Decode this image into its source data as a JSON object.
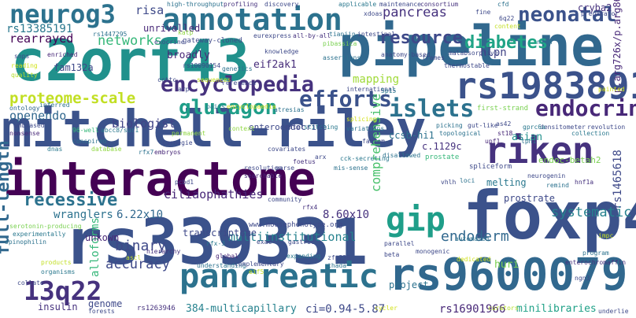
{
  "word_cloud": {
    "words": [
      {
        "text": "mitchell-riley",
        "color": "#3b528b"
      },
      {
        "text": "interactome",
        "color": "#440154"
      },
      {
        "text": "c2orf43",
        "color": "#21918c"
      },
      {
        "text": "pipeline",
        "color": "#31688e"
      },
      {
        "text": "foxp4",
        "color": "#3b528b"
      },
      {
        "text": "rs339331",
        "color": "#3b528b"
      },
      {
        "text": "rs9600079",
        "color": "#31688e"
      },
      {
        "text": "rs1983891",
        "color": "#3b528b"
      },
      {
        "text": "annotation",
        "color": "#2c728e"
      },
      {
        "text": "riken",
        "color": "#46327e"
      },
      {
        "text": "pancreatic",
        "color": "#2c728e"
      },
      {
        "text": "neurog3",
        "color": "#2c728e"
      },
      {
        "text": "gip",
        "color": "#1f9e89"
      },
      {
        "text": "encyclopedia",
        "color": "#46327e"
      },
      {
        "text": "endocrine",
        "color": "#482878"
      },
      {
        "text": "13q22",
        "color": "#46327e"
      },
      {
        "text": "glucagon",
        "color": "#1f9e89"
      },
      {
        "text": "resource",
        "color": "#3e4989"
      },
      {
        "text": "efforts",
        "color": "#3b528b"
      },
      {
        "text": "islets",
        "color": "#2c728e"
      },
      {
        "text": "neonatal",
        "color": "#3b528b"
      },
      {
        "text": "diabetes",
        "color": "#20a486"
      },
      {
        "text": "recessive",
        "color": "#2c728e"
      },
      {
        "text": "proteome-scale",
        "color": "#c2df23"
      },
      {
        "text": "full-length",
        "color": "#31688e"
      },
      {
        "text": "networks",
        "color": "#35b779"
      },
      {
        "text": "pancreas",
        "color": "#46327e"
      },
      {
        "text": "binary",
        "color": "#3e4989"
      },
      {
        "text": "accuracy",
        "color": "#3e4989"
      },
      {
        "text": "systematic",
        "color": "#26828e"
      },
      {
        "text": "endoderm",
        "color": "#31688e"
      },
      {
        "text": "mapping",
        "color": "#a0da39"
      },
      {
        "text": "rs13385191",
        "color": "#2a788e"
      },
      {
        "text": "rearrayed",
        "color": "#440154"
      },
      {
        "text": "openendo",
        "color": "#31688e"
      },
      {
        "text": "biologist",
        "color": "#414487"
      },
      {
        "text": "comprehensive",
        "color": "#4ac16d"
      },
      {
        "text": "multiinstitutional",
        "color": "#26828e"
      },
      {
        "text": "ciliaophathies",
        "color": "#482878"
      },
      {
        "text": "wranglers",
        "color": "#2c728e"
      },
      {
        "text": "6.22x10",
        "color": "#31688e"
      },
      {
        "text": "8.60x10",
        "color": "#46327e"
      },
      {
        "text": "rs1465618",
        "color": "#3e4989"
      },
      {
        "text": "rs16901966",
        "color": "#482878"
      },
      {
        "text": "ci=0.94-5.87",
        "color": "#3e4989"
      },
      {
        "text": "384-multicapillary",
        "color": "#26828e"
      },
      {
        "text": "minilibraries",
        "color": "#1fa187"
      },
      {
        "text": "hlpn",
        "color": "#414487"
      },
      {
        "text": "huri",
        "color": "#7ad151"
      },
      {
        "text": "alloforms",
        "color": "#35b779"
      },
      {
        "text": "prostrate",
        "color": "#3e4989"
      },
      {
        "text": "transcriptome",
        "color": "#3e4989"
      },
      {
        "text": "endoc-betah2",
        "color": "#7ad151"
      },
      {
        "text": "eif2ak1",
        "color": "#472d7b"
      },
      {
        "text": "ccsb-hi1",
        "color": "#2c728e"
      },
      {
        "text": "c.1129c",
        "color": "#46327e"
      },
      {
        "text": "fam132a",
        "color": "#3e4989"
      },
      {
        "text": "risa",
        "color": "#3e4989"
      },
      {
        "text": "unrivalled",
        "color": "#482878"
      },
      {
        "text": "broadly",
        "color": "#482878"
      },
      {
        "text": "melting",
        "color": "#2a788e"
      },
      {
        "text": "asian",
        "color": "#21918c"
      },
      {
        "text": "insulin",
        "color": "#46327e"
      },
      {
        "text": "genome",
        "color": "#3e4989"
      },
      {
        "text": "project",
        "color": "#2c728e"
      },
      {
        "text": "cryba2",
        "color": "#46327e"
      },
      {
        "text": "p.arg726x/p.arg868x",
        "color": "#482878"
      },
      {
        "text": "rs1263946",
        "color": "#46327e"
      },
      {
        "text": "gateway-cloned",
        "color": "#3e4989"
      },
      {
        "text": "enteroendocrine",
        "color": "#3e4989"
      },
      {
        "text": "unkown",
        "color": "#482878"
      },
      {
        "text": "www.mousephenotype.org",
        "color": "#3e4989"
      },
      {
        "text": "high-throughput",
        "color": "#2c728e"
      },
      {
        "text": "profiling",
        "color": "#46327e"
      },
      {
        "text": "discovery",
        "color": "#3e4989"
      },
      {
        "text": "applicable",
        "color": "#2a788e"
      },
      {
        "text": "maintenance",
        "color": "#3e4989"
      },
      {
        "text": "consortium",
        "color": "#46327e"
      },
      {
        "text": "knowledge",
        "color": "#3e4989"
      },
      {
        "text": "reference",
        "color": "#3e4989"
      },
      {
        "text": "ontology",
        "color": "#31688e"
      },
      {
        "text": "inferred",
        "color": "#2c728e"
      },
      {
        "text": "enriched",
        "color": "#482878"
      },
      {
        "text": "unbiased",
        "color": "#3e4989"
      },
      {
        "text": "nonsense",
        "color": "#482878"
      },
      {
        "text": "abcc8/sur1",
        "color": "#2a788e"
      },
      {
        "text": "96-well",
        "color": "#35b779"
      },
      {
        "text": "carnegie",
        "color": "#3e4989"
      },
      {
        "text": "embryos",
        "color": "#482878"
      },
      {
        "text": "patel",
        "color": "#3e4989"
      },
      {
        "text": "context",
        "color": "#90d743"
      },
      {
        "text": "atresias",
        "color": "#2c728e"
      },
      {
        "text": "splicing",
        "color": "#d2e21b"
      },
      {
        "text": "first-strand",
        "color": "#7ad151"
      },
      {
        "text": "picking",
        "color": "#2c728e"
      },
      {
        "text": "gut-like",
        "color": "#3e4989"
      },
      {
        "text": "densitometer",
        "color": "#3e4989"
      },
      {
        "text": "revolution",
        "color": "#3e4989"
      },
      {
        "text": "gprc6a",
        "color": "#2a788e"
      },
      {
        "text": "as42",
        "color": "#3e4989"
      },
      {
        "text": "topological",
        "color": "#2c728e"
      },
      {
        "text": "st18",
        "color": "#482878"
      },
      {
        "text": "upf1",
        "color": "#482878"
      },
      {
        "text": "tph1",
        "color": "#2c728e"
      },
      {
        "text": "collection",
        "color": "#2a788e"
      },
      {
        "text": "variations",
        "color": "#2c728e"
      },
      {
        "text": "fantom",
        "color": "#3e4989"
      },
      {
        "text": "stitching",
        "color": "#2a788e"
      },
      {
        "text": "covariates",
        "color": "#3e4989"
      },
      {
        "text": "arx",
        "color": "#3e4989"
      },
      {
        "text": "cck-secreting",
        "color": "#2a788e"
      },
      {
        "text": "disallowed",
        "color": "#2c728e"
      },
      {
        "text": "prostate",
        "color": "#35b779"
      },
      {
        "text": "foetus",
        "color": "#46327e"
      },
      {
        "text": "mis-sense",
        "color": "#2c728e"
      },
      {
        "text": "parse",
        "color": "#3e4989"
      },
      {
        "text": "searchable",
        "color": "#482878"
      },
      {
        "text": "resolution",
        "color": "#3e4989"
      },
      {
        "text": "spliceform",
        "color": "#3e4989"
      },
      {
        "text": "neurogenin",
        "color": "#3e4989"
      },
      {
        "text": "hnf1a",
        "color": "#46327e"
      },
      {
        "text": "remind",
        "color": "#2c728e"
      },
      {
        "text": "vhlh",
        "color": "#3e4989"
      },
      {
        "text": "loci",
        "color": "#2c728e"
      },
      {
        "text": "pcbd1",
        "color": "#3e4989"
      },
      {
        "text": "community",
        "color": "#3e4989"
      },
      {
        "text": "rfx4",
        "color": "#46327e"
      },
      {
        "text": "rfx-3",
        "color": "#2a788e"
      },
      {
        "text": "exac",
        "color": "#3e4989"
      },
      {
        "text": "gastric",
        "color": "#3e4989"
      },
      {
        "text": "hierarchy",
        "color": "#46327e"
      },
      {
        "text": "understanding",
        "color": "#2c728e"
      },
      {
        "text": "global",
        "color": "#482878"
      },
      {
        "text": "complementary",
        "color": "#3e4989"
      },
      {
        "text": "expanding",
        "color": "#2a788e"
      },
      {
        "text": "zfp238",
        "color": "#3e4989"
      },
      {
        "text": "thada",
        "color": "#2c728e"
      },
      {
        "text": "monogenic",
        "color": "#3e4989"
      },
      {
        "text": "dedicated",
        "color": "#d2e21b"
      },
      {
        "text": "beta",
        "color": "#3e4989"
      },
      {
        "text": "automated",
        "color": "#2c728e"
      },
      {
        "text": "parallel",
        "color": "#3e4989"
      },
      {
        "text": "ngn3",
        "color": "#3e4989"
      },
      {
        "text": "enterochromaffin",
        "color": "#46327e"
      },
      {
        "text": "program",
        "color": "#2c728e"
      },
      {
        "text": "collate",
        "color": "#3e4989"
      },
      {
        "text": "products",
        "color": "#c2df23"
      },
      {
        "text": "organisms",
        "color": "#2a788e"
      },
      {
        "text": "forests",
        "color": "#3e4989"
      },
      {
        "text": "cycler",
        "color": "#d2e21b"
      },
      {
        "text": "curators",
        "color": "#b5de2b"
      },
      {
        "text": "underlie",
        "color": "#3e4989"
      },
      {
        "text": "spinophilin",
        "color": "#2c728e"
      },
      {
        "text": "experimentally",
        "color": "#2a788e"
      },
      {
        "text": "serotonin-producing",
        "color": "#7ad151"
      },
      {
        "text": "snps",
        "color": "#3e4989"
      },
      {
        "text": "reading",
        "color": "#d2e21b"
      },
      {
        "text": "quality",
        "color": "#b5de2b"
      },
      {
        "text": "dnas",
        "color": "#2a788e"
      },
      {
        "text": "database",
        "color": "#90d743"
      },
      {
        "text": "conspired",
        "color": "#2c728e"
      },
      {
        "text": "rs1447295",
        "color": "#2c728e"
      },
      {
        "text": "rs10090154",
        "color": "#3e4989"
      },
      {
        "text": "katp",
        "color": "#90d743"
      },
      {
        "text": "arp",
        "color": "#3e4989"
      },
      {
        "text": "pairs",
        "color": "#2a788e"
      },
      {
        "text": "encyclopaedia",
        "color": "#d2e21b"
      },
      {
        "text": "permanent",
        "color": "#90d743"
      },
      {
        "text": "sequences",
        "color": "#c2df23"
      },
      {
        "text": "genetics",
        "color": "#2c728e"
      },
      {
        "text": "exocrine",
        "color": "#3e4989"
      },
      {
        "text": "eurexpress",
        "color": "#3e4989"
      },
      {
        "text": "all-by-all",
        "color": "#46327e"
      },
      {
        "text": "pibassica",
        "color": "#7ad151"
      },
      {
        "text": "tianjin",
        "color": "#2c728e"
      },
      {
        "text": "intestinal",
        "color": "#3e4989"
      },
      {
        "text": "xdoas",
        "color": "#3e4989"
      },
      {
        "text": "fine",
        "color": "#3e4989"
      },
      {
        "text": "cfd",
        "color": "#2c728e"
      },
      {
        "text": "6q22",
        "color": "#3e4989"
      },
      {
        "text": "preparator",
        "color": "#3e4989"
      },
      {
        "text": "content",
        "color": "#c2df23"
      },
      {
        "text": "nf-m",
        "color": "#2c728e"
      },
      {
        "text": "malabsorptive",
        "color": "#3e4989"
      },
      {
        "text": "thermostable",
        "color": "#3e4989"
      },
      {
        "text": "frames",
        "color": "#3e4989"
      },
      {
        "text": "anatomy-based",
        "color": "#3e4989"
      },
      {
        "text": "assertions",
        "color": "#2c728e"
      },
      {
        "text": "international",
        "color": "#3e4989"
      },
      {
        "text": "5p15",
        "color": "#2a788e"
      },
      {
        "text": "painted",
        "color": "#d2e21b"
      },
      {
        "text": "impc",
        "color": "#c2df23"
      },
      {
        "text": "ccttc",
        "color": "#3e4989"
      },
      {
        "text": "eif5",
        "color": "#c2df23"
      },
      {
        "text": "ascl",
        "color": "#c2df23"
      },
      {
        "text": "rfx7",
        "color": "#2c728e"
      }
    ]
  }
}
